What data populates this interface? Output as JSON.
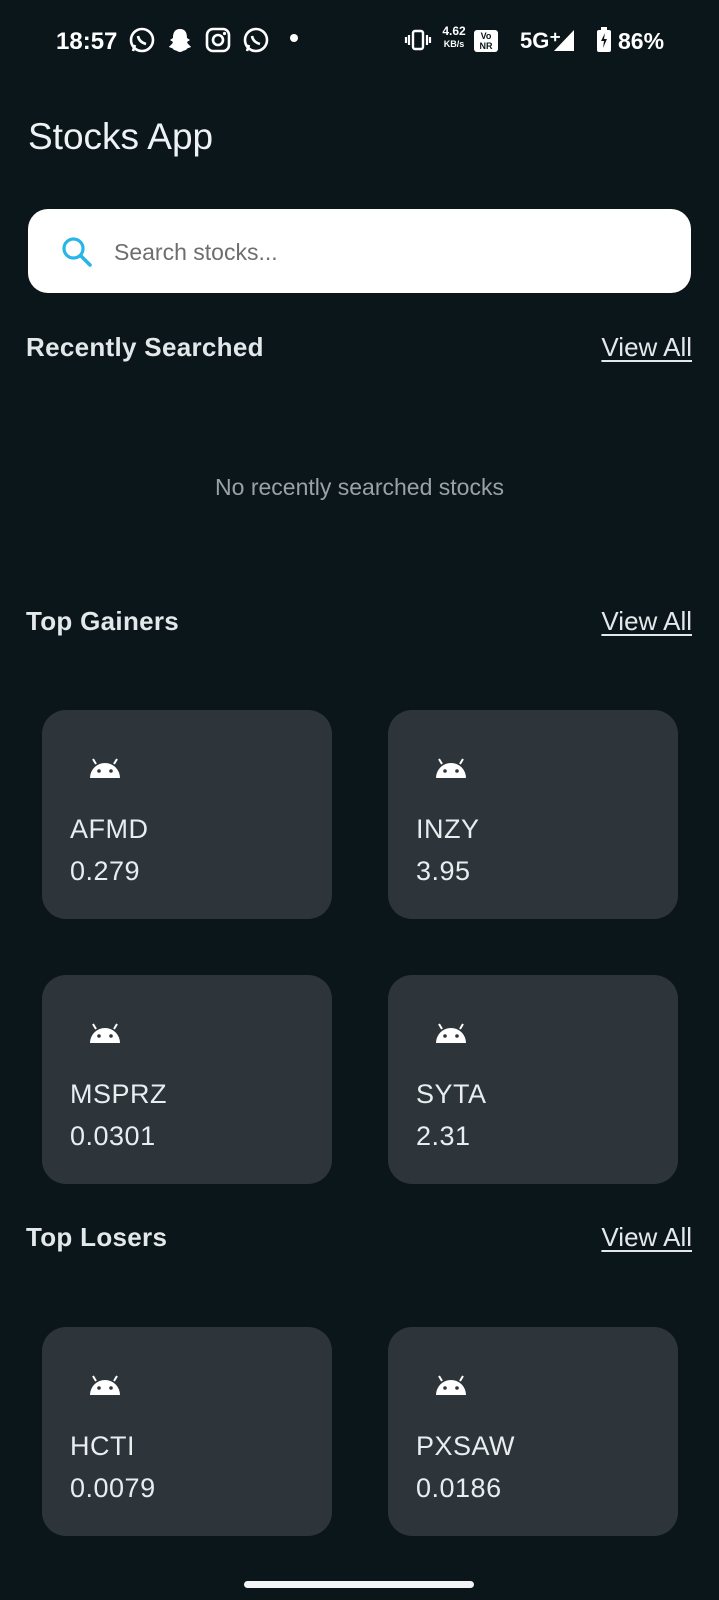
{
  "status_bar": {
    "time": "18:57",
    "net_speed_value": "4.62",
    "net_speed_unit": "KB/s",
    "vonr_top": "Vo",
    "vonr_bottom": "NR",
    "network": "5G⁺",
    "battery": "86%",
    "notification_icons": [
      "whatsapp-icon",
      "snapchat-icon",
      "instagram-icon",
      "whatsapp-icon"
    ]
  },
  "app": {
    "title": "Stocks App"
  },
  "search": {
    "placeholder": "Search stocks...",
    "value": ""
  },
  "recently_searched": {
    "title": "Recently Searched",
    "view_all": "View All",
    "empty_message": "No recently searched stocks"
  },
  "top_gainers": {
    "title": "Top Gainers",
    "view_all": "View All",
    "items": [
      {
        "symbol": "AFMD",
        "price": "0.279"
      },
      {
        "symbol": "INZY",
        "price": "3.95"
      },
      {
        "symbol": "MSPRZ",
        "price": "0.0301"
      },
      {
        "symbol": "SYTA",
        "price": "2.31"
      }
    ]
  },
  "top_losers": {
    "title": "Top Losers",
    "view_all": "View All",
    "items": [
      {
        "symbol": "HCTI",
        "price": "0.0079"
      },
      {
        "symbol": "PXSAW",
        "price": "0.0186"
      }
    ]
  },
  "colors": {
    "background": "#0b161b",
    "card": "#2d353b",
    "search_icon": "#29b6e6"
  }
}
